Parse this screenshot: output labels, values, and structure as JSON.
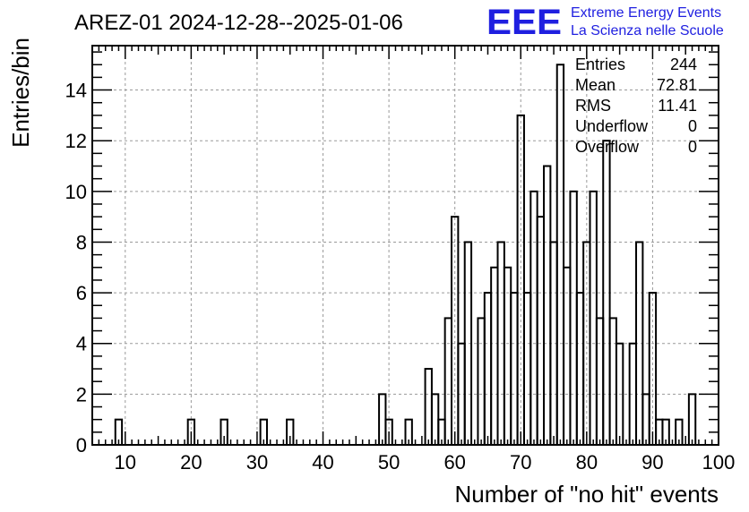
{
  "title": "AREZ-01 2024-12-28--2025-01-06",
  "logo": {
    "mark": "EEE",
    "line1": "Extreme Energy Events",
    "line2": "La Scienza nelle Scuole",
    "color": "#1f1fe0"
  },
  "stats": [
    {
      "label": "Entries",
      "value": "244"
    },
    {
      "label": "Mean",
      "value": "72.81"
    },
    {
      "label": "RMS",
      "value": "11.41"
    },
    {
      "label": "Underflow",
      "value": "0"
    },
    {
      "label": "Overflow",
      "value": "0"
    }
  ],
  "chart_data": {
    "type": "bar",
    "style": "step-histogram",
    "xlabel": "Number of \"no hit\" events",
    "ylabel": "Entries/bin",
    "xlim": [
      5,
      100
    ],
    "ylim": [
      0,
      15.75
    ],
    "bin_width": 1,
    "xticks": [
      10,
      20,
      30,
      40,
      50,
      60,
      70,
      80,
      90,
      100
    ],
    "yticks": [
      0,
      2,
      4,
      6,
      8,
      10,
      12,
      14
    ],
    "grid": true,
    "bins": [
      {
        "x": 8,
        "count": 0
      },
      {
        "x": 9,
        "count": 1
      },
      {
        "x": 20,
        "count": 1
      },
      {
        "x": 25,
        "count": 1
      },
      {
        "x": 31,
        "count": 1
      },
      {
        "x": 35,
        "count": 1
      },
      {
        "x": 49,
        "count": 2
      },
      {
        "x": 50,
        "count": 1
      },
      {
        "x": 53,
        "count": 1
      },
      {
        "x": 56,
        "count": 3
      },
      {
        "x": 57,
        "count": 2
      },
      {
        "x": 58,
        "count": 1
      },
      {
        "x": 59,
        "count": 5
      },
      {
        "x": 60,
        "count": 9
      },
      {
        "x": 61,
        "count": 4
      },
      {
        "x": 62,
        "count": 8
      },
      {
        "x": 63,
        "count": 0
      },
      {
        "x": 64,
        "count": 5
      },
      {
        "x": 65,
        "count": 6
      },
      {
        "x": 66,
        "count": 7
      },
      {
        "x": 67,
        "count": 8
      },
      {
        "x": 68,
        "count": 7
      },
      {
        "x": 69,
        "count": 6
      },
      {
        "x": 70,
        "count": 13
      },
      {
        "x": 71,
        "count": 6
      },
      {
        "x": 72,
        "count": 10
      },
      {
        "x": 73,
        "count": 9
      },
      {
        "x": 74,
        "count": 11
      },
      {
        "x": 75,
        "count": 8
      },
      {
        "x": 76,
        "count": 15
      },
      {
        "x": 77,
        "count": 7
      },
      {
        "x": 78,
        "count": 10
      },
      {
        "x": 79,
        "count": 6
      },
      {
        "x": 80,
        "count": 8
      },
      {
        "x": 81,
        "count": 10
      },
      {
        "x": 82,
        "count": 5
      },
      {
        "x": 83,
        "count": 12
      },
      {
        "x": 84,
        "count": 5
      },
      {
        "x": 85,
        "count": 4
      },
      {
        "x": 86,
        "count": 0
      },
      {
        "x": 87,
        "count": 4
      },
      {
        "x": 88,
        "count": 8
      },
      {
        "x": 89,
        "count": 2
      },
      {
        "x": 90,
        "count": 6
      },
      {
        "x": 91,
        "count": 1
      },
      {
        "x": 92,
        "count": 1
      },
      {
        "x": 93,
        "count": 0
      },
      {
        "x": 94,
        "count": 1
      },
      {
        "x": 95,
        "count": 0
      },
      {
        "x": 96,
        "count": 2
      }
    ]
  }
}
